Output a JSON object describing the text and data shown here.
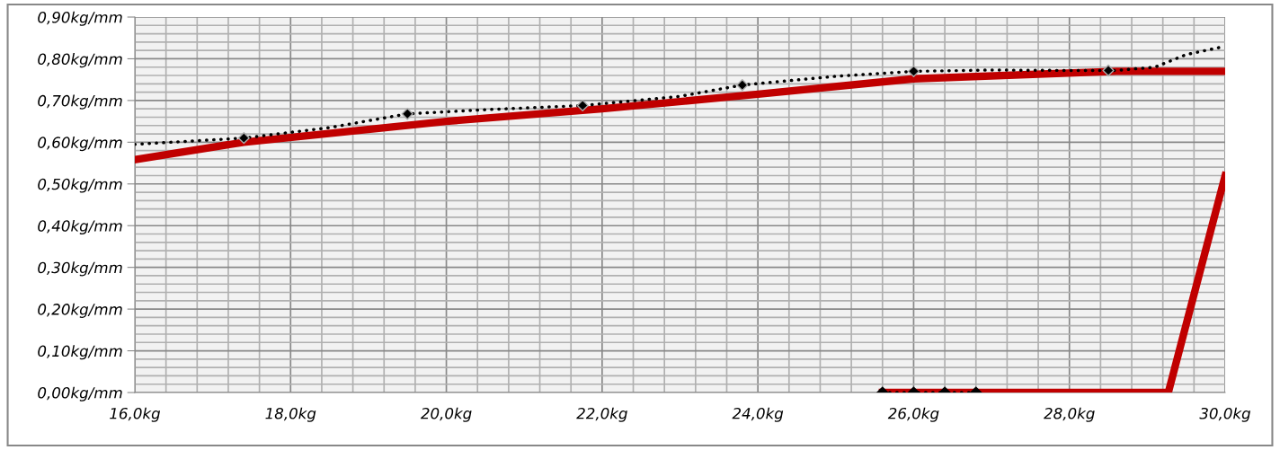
{
  "chart_data": {
    "type": "line",
    "xlim": [
      16,
      30
    ],
    "ylim": [
      0,
      0.9
    ],
    "xticks": [
      {
        "value": 16,
        "label": "16,0kg"
      },
      {
        "value": 18,
        "label": "18,0kg"
      },
      {
        "value": 20,
        "label": "20,0kg"
      },
      {
        "value": 22,
        "label": "22,0kg"
      },
      {
        "value": 24,
        "label": "24,0kg"
      },
      {
        "value": 26,
        "label": "26,0kg"
      },
      {
        "value": 28,
        "label": "28,0kg"
      },
      {
        "value": 30,
        "label": "30,0kg"
      }
    ],
    "yticks": [
      {
        "value": 0,
        "label": "0,00kg/mm"
      },
      {
        "value": 0.1,
        "label": "0,10kg/mm"
      },
      {
        "value": 0.2,
        "label": "0,20kg/mm"
      },
      {
        "value": 0.3,
        "label": "0,30kg/mm"
      },
      {
        "value": 0.4,
        "label": "0,40kg/mm"
      },
      {
        "value": 0.5,
        "label": "0,50kg/mm"
      },
      {
        "value": 0.6,
        "label": "0,60kg/mm"
      },
      {
        "value": 0.7,
        "label": "0,70kg/mm"
      },
      {
        "value": 0.8,
        "label": "0,80kg/mm"
      },
      {
        "value": 0.9,
        "label": "0,90kg/mm"
      }
    ],
    "grid": true,
    "series": [
      {
        "color": "#c00000",
        "line_style": "solid",
        "marker": "none",
        "x": [
          16,
          17.4,
          20,
          22,
          24,
          26,
          28.6,
          30
        ],
        "values": [
          0.558,
          0.6,
          0.65,
          0.68,
          0.715,
          0.752,
          0.77,
          0.77
        ]
      },
      {
        "color": "#c00000",
        "line_style": "solid",
        "marker": "none",
        "x": [
          25.6,
          29.27,
          30
        ],
        "values": [
          0,
          0,
          0.52
        ]
      },
      {
        "color": "#000000",
        "line_style": "dotted",
        "marker": "none",
        "x": [
          16,
          17.4,
          18.5,
          19.5,
          20.5,
          21.75,
          23,
          23.8,
          25,
          26,
          27,
          28,
          28.6,
          29.1,
          29.5,
          30
        ],
        "values": [
          0.595,
          0.61,
          0.635,
          0.668,
          0.678,
          0.688,
          0.71,
          0.737,
          0.758,
          0.77,
          0.773,
          0.772,
          0.772,
          0.78,
          0.81,
          0.83
        ]
      },
      {
        "type": "scatter",
        "color": "#000000",
        "marker": "diamond",
        "x": [
          17.4,
          19.5,
          21.75,
          23.8,
          26,
          28.5
        ],
        "values": [
          0.61,
          0.668,
          0.688,
          0.737,
          0.77,
          0.772
        ]
      },
      {
        "color": "#000000",
        "line_style": "dotted",
        "marker": "diamond",
        "x": [
          25.6,
          26.0,
          26.4,
          26.8
        ],
        "values": [
          0,
          0,
          0,
          0
        ]
      }
    ]
  }
}
